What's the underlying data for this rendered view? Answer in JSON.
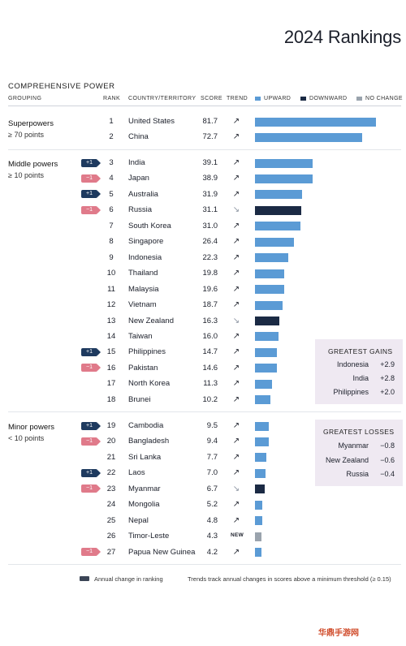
{
  "title": "2024 Rankings",
  "section_title": "COMPREHENSIVE POWER",
  "headers": {
    "grouping": "GROUPING",
    "rank": "RANK",
    "country": "COUNTRY/TERRITORY",
    "score": "SCORE",
    "trend": "TREND"
  },
  "legend": {
    "upward": "UPWARD",
    "downward": "DOWNWARD",
    "no_change": "NO CHANGE"
  },
  "colors": {
    "upward": "#5b9bd5",
    "downward": "#1b2a44",
    "no_change": "#9aa3ad",
    "badge_up": "#1e3a5f",
    "badge_down": "#e07a8a"
  },
  "groups": {
    "superpowers": {
      "label": "Superpowers",
      "note": "≥ 70 points"
    },
    "middle": {
      "label": "Middle powers",
      "note": "≥ 10 points"
    },
    "minor": {
      "label": "Minor powers",
      "note": "< 10 points"
    }
  },
  "chart_data": {
    "type": "bar",
    "title": "2024 Rankings",
    "subtitle": "COMPREHENSIVE POWER",
    "xlim": [
      0,
      100
    ],
    "rows": [
      {
        "rank": "1",
        "country": "United States",
        "score": 81.7,
        "trend": "upward",
        "trend_icon": "↗",
        "badge": ""
      },
      {
        "rank": "2",
        "country": "China",
        "score": 72.7,
        "trend": "upward",
        "trend_icon": "↗",
        "badge": ""
      },
      {
        "rank": "3",
        "country": "India",
        "score": 39.1,
        "trend": "upward",
        "trend_icon": "↗",
        "badge": "+1"
      },
      {
        "rank": "4",
        "country": "Japan",
        "score": 38.9,
        "trend": "upward",
        "trend_icon": "↗",
        "badge": "−1"
      },
      {
        "rank": "5",
        "country": "Australia",
        "score": 31.9,
        "trend": "upward",
        "trend_icon": "↗",
        "badge": "+1"
      },
      {
        "rank": "6",
        "country": "Russia",
        "score": 31.1,
        "trend": "downward",
        "trend_icon": "↘",
        "badge": "−1"
      },
      {
        "rank": "7",
        "country": "South Korea",
        "score": 31.0,
        "trend": "upward",
        "trend_icon": "↗",
        "badge": ""
      },
      {
        "rank": "8",
        "country": "Singapore",
        "score": 26.4,
        "trend": "upward",
        "trend_icon": "↗",
        "badge": ""
      },
      {
        "rank": "9",
        "country": "Indonesia",
        "score": 22.3,
        "trend": "upward",
        "trend_icon": "↗",
        "badge": ""
      },
      {
        "rank": "10",
        "country": "Thailand",
        "score": 19.8,
        "trend": "upward",
        "trend_icon": "↗",
        "badge": ""
      },
      {
        "rank": "11",
        "country": "Malaysia",
        "score": 19.6,
        "trend": "upward",
        "trend_icon": "↗",
        "badge": ""
      },
      {
        "rank": "12",
        "country": "Vietnam",
        "score": 18.7,
        "trend": "upward",
        "trend_icon": "↗",
        "badge": ""
      },
      {
        "rank": "13",
        "country": "New Zealand",
        "score": 16.3,
        "trend": "downward",
        "trend_icon": "↘",
        "badge": ""
      },
      {
        "rank": "14",
        "country": "Taiwan",
        "score": 16.0,
        "trend": "upward",
        "trend_icon": "↗",
        "badge": ""
      },
      {
        "rank": "15",
        "country": "Philippines",
        "score": 14.7,
        "trend": "upward",
        "trend_icon": "↗",
        "badge": "+1"
      },
      {
        "rank": "16",
        "country": "Pakistan",
        "score": 14.6,
        "trend": "upward",
        "trend_icon": "↗",
        "badge": "−1"
      },
      {
        "rank": "17",
        "country": "North Korea",
        "score": 11.3,
        "trend": "upward",
        "trend_icon": "↗",
        "badge": ""
      },
      {
        "rank": "18",
        "country": "Brunei",
        "score": 10.2,
        "trend": "upward",
        "trend_icon": "↗",
        "badge": ""
      },
      {
        "rank": "19",
        "country": "Cambodia",
        "score": 9.5,
        "trend": "upward",
        "trend_icon": "↗",
        "badge": "+1"
      },
      {
        "rank": "20",
        "country": "Bangladesh",
        "score": 9.4,
        "trend": "upward",
        "trend_icon": "↗",
        "badge": "−1"
      },
      {
        "rank": "21",
        "country": "Sri Lanka",
        "score": 7.7,
        "trend": "upward",
        "trend_icon": "↗",
        "badge": ""
      },
      {
        "rank": "22",
        "country": "Laos",
        "score": 7.0,
        "trend": "upward",
        "trend_icon": "↗",
        "badge": "+1"
      },
      {
        "rank": "23",
        "country": "Myanmar",
        "score": 6.7,
        "trend": "downward",
        "trend_icon": "↘",
        "badge": "−1"
      },
      {
        "rank": "24",
        "country": "Mongolia",
        "score": 5.2,
        "trend": "upward",
        "trend_icon": "↗",
        "badge": ""
      },
      {
        "rank": "25",
        "country": "Nepal",
        "score": 4.8,
        "trend": "upward",
        "trend_icon": "↗",
        "badge": ""
      },
      {
        "rank": "26",
        "country": "Timor-Leste",
        "score": 4.3,
        "trend": "no_change",
        "trend_icon": "NEW",
        "badge": ""
      },
      {
        "rank": "27",
        "country": "Papua New Guinea",
        "score": 4.2,
        "trend": "upward",
        "trend_icon": "↗",
        "badge": "−1"
      }
    ]
  },
  "greatest_gains": {
    "title": "GREATEST GAINS",
    "items": [
      {
        "name": "Indonesia",
        "value": "+2.9"
      },
      {
        "name": "India",
        "value": "+2.8"
      },
      {
        "name": "Philippines",
        "value": "+2.0"
      }
    ]
  },
  "greatest_losses": {
    "title": "GREATEST LOSSES",
    "items": [
      {
        "name": "Myanmar",
        "value": "−0.8"
      },
      {
        "name": "New Zealand",
        "value": "−0.6"
      },
      {
        "name": "Russia",
        "value": "−0.4"
      }
    ]
  },
  "footer": {
    "legend_text": "Annual change in ranking",
    "note": "Trends track annual changes in scores above a minimum threshold (≥ 0.15)"
  },
  "watermark": "华鼎手游网"
}
